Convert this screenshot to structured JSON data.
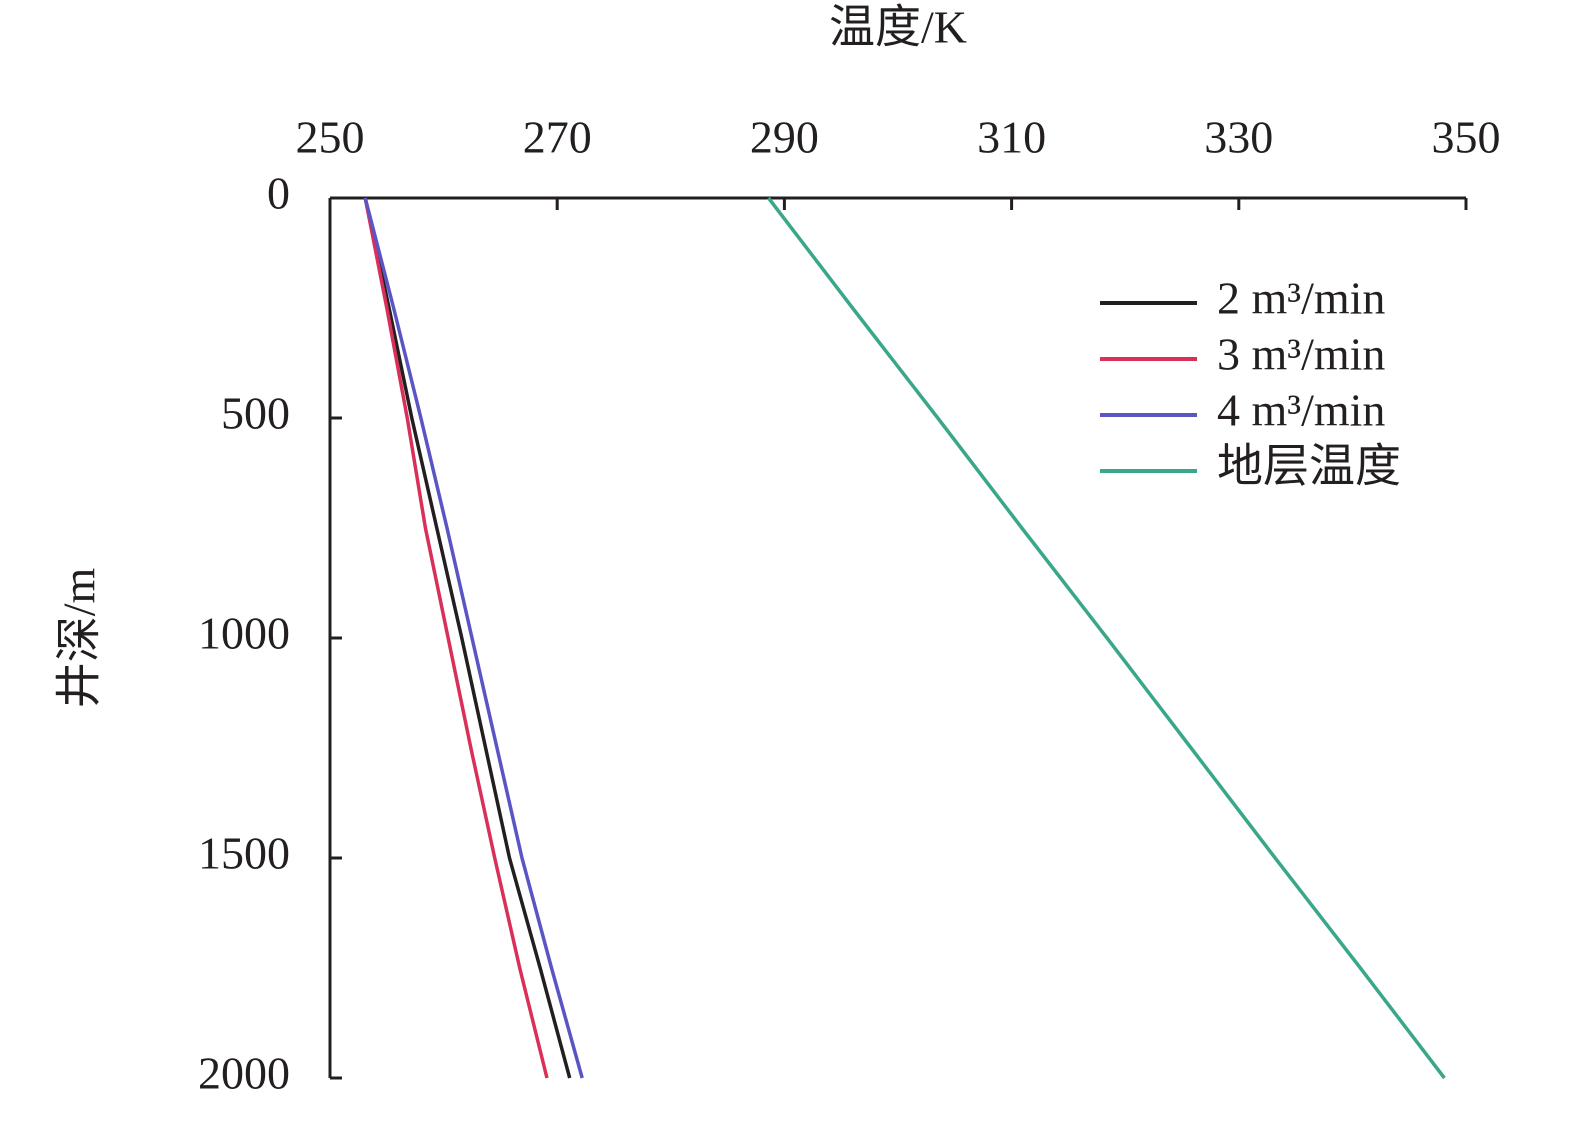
{
  "chart_data": {
    "type": "line",
    "x_label": "温度/K",
    "y_label": "井深/m",
    "y": [
      0,
      250,
      500,
      750,
      1000,
      1250,
      1500,
      1750,
      2000
    ],
    "series": [
      {
        "name": "2 m³/min",
        "color": "#231f20",
        "x": [
          253.1,
          255.2,
          257.2,
          259.4,
          261.6,
          263.7,
          265.8,
          268.5,
          271.1
        ]
      },
      {
        "name": "3 m³/min",
        "color": "#d9305a",
        "x": [
          253.1,
          255.0,
          256.8,
          258.4,
          260.4,
          262.4,
          264.5,
          266.7,
          269.1
        ]
      },
      {
        "name": "4 m³/min",
        "color": "#5a55c4",
        "x": [
          253.1,
          255.6,
          258.0,
          260.3,
          262.5,
          264.7,
          266.9,
          269.5,
          272.2
        ]
      },
      {
        "name": "地层温度",
        "color": "#3aa68a",
        "x": [
          288.6,
          296.0,
          303.5,
          310.9,
          318.4,
          325.8,
          333.2,
          340.7,
          348.1
        ]
      }
    ],
    "xlim": [
      250,
      350
    ],
    "xticks": [
      250,
      270,
      290,
      310,
      330,
      350
    ],
    "ylim": [
      0,
      2000
    ],
    "yticks": [
      0,
      500,
      1000,
      1500,
      2000
    ],
    "y_inverted": true,
    "x_axis_position": "top",
    "legend": "upper right"
  }
}
